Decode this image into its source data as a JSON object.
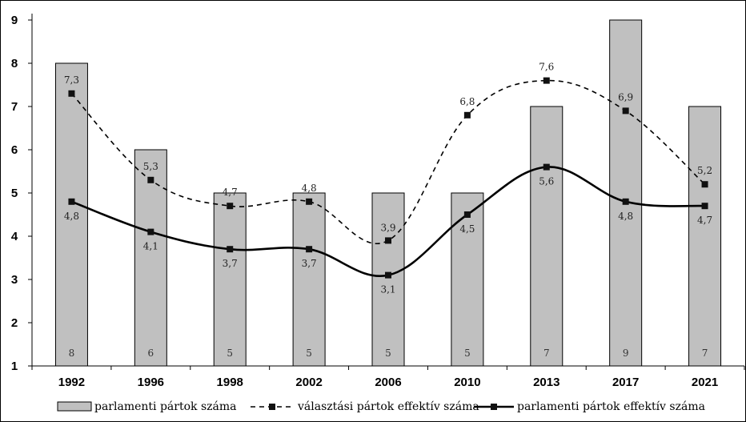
{
  "chart_data": {
    "type": "bar+line",
    "categories": [
      "1992",
      "1996",
      "1998",
      "2002",
      "2006",
      "2010",
      "2013",
      "2017",
      "2021"
    ],
    "ylim": [
      1,
      9
    ],
    "yticks": [
      "1",
      "2",
      "3",
      "4",
      "5",
      "6",
      "7",
      "8",
      "9"
    ],
    "grid": false,
    "legend_position": "bottom",
    "series": [
      {
        "name": "parlamenti pártok száma",
        "kind": "bar",
        "values": [
          8,
          6,
          5,
          5,
          5,
          5,
          7,
          9,
          7
        ],
        "labels": [
          "8",
          "6",
          "5",
          "5",
          "5",
          "5",
          "7",
          "9",
          "7"
        ],
        "color": "#c0c0c0"
      },
      {
        "name": "választási pártok effektív száma",
        "kind": "line-dashed",
        "values": [
          7.3,
          5.3,
          4.7,
          4.8,
          3.9,
          6.8,
          7.6,
          6.9,
          5.2
        ],
        "labels": [
          "7,3",
          "5,3",
          "4,7",
          "4,8",
          "3,9",
          "6,8",
          "7,6",
          "6,9",
          "5,2"
        ],
        "color": "#000000"
      },
      {
        "name": "parlamenti pártok effektív száma",
        "kind": "line-solid",
        "values": [
          4.8,
          4.1,
          3.7,
          3.7,
          3.1,
          4.5,
          5.6,
          4.8,
          4.7
        ],
        "labels": [
          "4,8",
          "4,1",
          "3,7",
          "3,7",
          "3,1",
          "4,5",
          "5,6",
          "4,8",
          "4,7"
        ],
        "color": "#000000"
      }
    ]
  }
}
